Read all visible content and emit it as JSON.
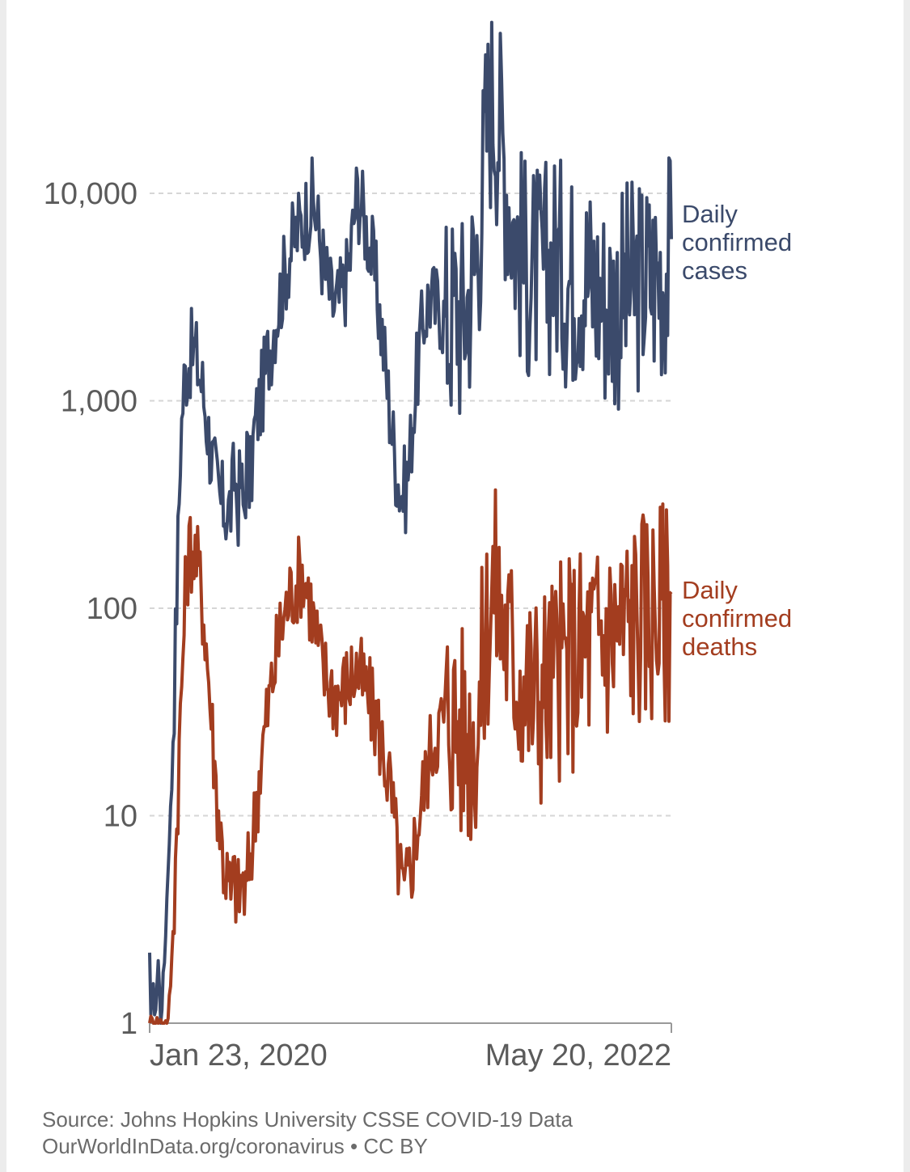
{
  "chart_data": {
    "type": "line",
    "title": "",
    "xlabel": "",
    "ylabel": "",
    "y_scale": "log",
    "ylim": [
      1,
      40000
    ],
    "y_ticks": [
      {
        "value": 1,
        "label": "1"
      },
      {
        "value": 10,
        "label": "10"
      },
      {
        "value": 100,
        "label": "100"
      },
      {
        "value": 1000,
        "label": "1,000"
      },
      {
        "value": 10000,
        "label": "10,000"
      }
    ],
    "x_range_days": [
      0,
      848
    ],
    "x_ticks": [
      {
        "day": 0,
        "label": "Jan 23, 2020"
      },
      {
        "day": 848,
        "label": "May 20, 2022"
      }
    ],
    "grid": true,
    "series": [
      {
        "name": "Daily confirmed cases",
        "label_lines": [
          "Daily",
          "confirmed",
          "cases"
        ],
        "color": "#3b4a6b",
        "points": [
          [
            0,
            2
          ],
          [
            2,
            1
          ],
          [
            5,
            2
          ],
          [
            8,
            1
          ],
          [
            14,
            2
          ],
          [
            18,
            1
          ],
          [
            24,
            2
          ],
          [
            28,
            4
          ],
          [
            32,
            8
          ],
          [
            36,
            14
          ],
          [
            40,
            40
          ],
          [
            45,
            150
          ],
          [
            50,
            600
          ],
          [
            55,
            1150
          ],
          [
            60,
            1450
          ],
          [
            66,
            1650
          ],
          [
            72,
            1750
          ],
          [
            78,
            1500
          ],
          [
            85,
            1200
          ],
          [
            92,
            850
          ],
          [
            100,
            550
          ],
          [
            108,
            400
          ],
          [
            115,
            320
          ],
          [
            122,
            310
          ],
          [
            128,
            290
          ],
          [
            133,
            320
          ],
          [
            138,
            450
          ],
          [
            143,
            300
          ],
          [
            148,
            420
          ],
          [
            153,
            280
          ],
          [
            158,
            550
          ],
          [
            163,
            380
          ],
          [
            170,
            700
          ],
          [
            176,
            900
          ],
          [
            183,
            1100
          ],
          [
            190,
            1500
          ],
          [
            197,
            1900
          ],
          [
            204,
            2500
          ],
          [
            212,
            3200
          ],
          [
            220,
            4200
          ],
          [
            228,
            5200
          ],
          [
            235,
            6000
          ],
          [
            242,
            6800
          ],
          [
            250,
            7500
          ],
          [
            258,
            8500
          ],
          [
            265,
            9200
          ],
          [
            272,
            7500
          ],
          [
            278,
            5500
          ],
          [
            284,
            4300
          ],
          [
            290,
            3600
          ],
          [
            296,
            3000
          ],
          [
            302,
            2800
          ],
          [
            308,
            3000
          ],
          [
            314,
            3400
          ],
          [
            320,
            3900
          ],
          [
            326,
            5000
          ],
          [
            332,
            7500
          ],
          [
            337,
            10000
          ],
          [
            343,
            9000
          ],
          [
            350,
            7200
          ],
          [
            356,
            6000
          ],
          [
            362,
            4800
          ],
          [
            368,
            3600
          ],
          [
            374,
            2600
          ],
          [
            380,
            1800
          ],
          [
            386,
            1200
          ],
          [
            392,
            800
          ],
          [
            398,
            550
          ],
          [
            404,
            420
          ],
          [
            410,
            360
          ],
          [
            416,
            380
          ],
          [
            422,
            500
          ],
          [
            428,
            850
          ],
          [
            434,
            1300
          ],
          [
            440,
            1900
          ],
          [
            446,
            2500
          ],
          [
            452,
            3000
          ],
          [
            458,
            3200
          ],
          [
            464,
            2800
          ],
          [
            470,
            3000
          ],
          [
            476,
            2600
          ],
          [
            482,
            2400
          ],
          [
            488,
            2500
          ],
          [
            494,
            2700
          ],
          [
            500,
            3000
          ],
          [
            505,
            2400
          ],
          [
            510,
            2600
          ],
          [
            516,
            3100
          ],
          [
            522,
            3600
          ],
          [
            528,
            4300
          ],
          [
            534,
            6000
          ],
          [
            540,
            10000
          ],
          [
            546,
            18000
          ],
          [
            552,
            27000
          ],
          [
            558,
            29000
          ],
          [
            564,
            25000
          ],
          [
            570,
            20000
          ],
          [
            576,
            15000
          ],
          [
            582,
            11000
          ],
          [
            588,
            8500
          ],
          [
            594,
            6500
          ],
          [
            600,
            5500
          ],
          [
            606,
            4800
          ],
          [
            612,
            4400
          ],
          [
            618,
            4200
          ],
          [
            624,
            4300
          ],
          [
            630,
            4100
          ],
          [
            636,
            3900
          ],
          [
            642,
            4200
          ],
          [
            648,
            4500
          ],
          [
            654,
            4800
          ],
          [
            660,
            5000
          ],
          [
            666,
            4600
          ],
          [
            672,
            4200
          ],
          [
            678,
            4000
          ],
          [
            684,
            3900
          ],
          [
            690,
            4100
          ],
          [
            696,
            4300
          ],
          [
            702,
            4500
          ],
          [
            708,
            4200
          ],
          [
            714,
            3900
          ],
          [
            720,
            3700
          ],
          [
            726,
            3500
          ],
          [
            732,
            3300
          ],
          [
            738,
            3200
          ],
          [
            744,
            3100
          ],
          [
            750,
            3000
          ],
          [
            756,
            3000
          ],
          [
            762,
            3100
          ],
          [
            768,
            3200
          ],
          [
            774,
            3300
          ],
          [
            780,
            3400
          ],
          [
            786,
            3500
          ],
          [
            792,
            3600
          ],
          [
            798,
            3700
          ],
          [
            804,
            3800
          ],
          [
            810,
            3900
          ],
          [
            816,
            4000
          ],
          [
            822,
            4100
          ],
          [
            828,
            4200
          ],
          [
            834,
            4300
          ],
          [
            840,
            4400
          ],
          [
            848,
            5000
          ]
        ]
      },
      {
        "name": "Daily confirmed deaths",
        "label_lines": [
          "Daily",
          "confirmed",
          "deaths"
        ],
        "color": "#a33d1f",
        "points": [
          [
            0,
            1
          ],
          [
            30,
            1
          ],
          [
            36,
            2
          ],
          [
            42,
            6
          ],
          [
            48,
            20
          ],
          [
            54,
            60
          ],
          [
            60,
            150
          ],
          [
            66,
            200
          ],
          [
            72,
            190
          ],
          [
            78,
            160
          ],
          [
            84,
            120
          ],
          [
            90,
            80
          ],
          [
            96,
            45
          ],
          [
            102,
            25
          ],
          [
            108,
            14
          ],
          [
            114,
            9
          ],
          [
            120,
            6
          ],
          [
            126,
            5
          ],
          [
            132,
            4
          ],
          [
            138,
            5
          ],
          [
            144,
            4
          ],
          [
            150,
            5
          ],
          [
            156,
            4
          ],
          [
            162,
            6
          ],
          [
            168,
            8
          ],
          [
            174,
            12
          ],
          [
            180,
            18
          ],
          [
            186,
            24
          ],
          [
            192,
            32
          ],
          [
            198,
            42
          ],
          [
            204,
            55
          ],
          [
            210,
            70
          ],
          [
            216,
            85
          ],
          [
            222,
            100
          ],
          [
            228,
            115
          ],
          [
            234,
            125
          ],
          [
            240,
            135
          ],
          [
            246,
            150
          ],
          [
            252,
            140
          ],
          [
            258,
            120
          ],
          [
            264,
            95
          ],
          [
            270,
            75
          ],
          [
            276,
            60
          ],
          [
            282,
            50
          ],
          [
            288,
            46
          ],
          [
            294,
            42
          ],
          [
            300,
            40
          ],
          [
            306,
            38
          ],
          [
            312,
            40
          ],
          [
            318,
            42
          ],
          [
            324,
            45
          ],
          [
            330,
            48
          ],
          [
            336,
            50
          ],
          [
            342,
            46
          ],
          [
            348,
            42
          ],
          [
            354,
            38
          ],
          [
            360,
            34
          ],
          [
            366,
            30
          ],
          [
            372,
            26
          ],
          [
            378,
            22
          ],
          [
            384,
            18
          ],
          [
            390,
            14
          ],
          [
            396,
            10
          ],
          [
            402,
            7
          ],
          [
            408,
            5
          ],
          [
            414,
            4
          ],
          [
            420,
            5
          ],
          [
            426,
            6
          ],
          [
            432,
            8
          ],
          [
            438,
            10
          ],
          [
            444,
            13
          ],
          [
            450,
            16
          ],
          [
            456,
            20
          ],
          [
            462,
            24
          ],
          [
            468,
            26
          ],
          [
            474,
            28
          ],
          [
            480,
            30
          ],
          [
            486,
            32
          ],
          [
            492,
            30
          ],
          [
            498,
            28
          ],
          [
            504,
            26
          ],
          [
            510,
            25
          ],
          [
            516,
            24
          ],
          [
            522,
            24
          ],
          [
            528,
            25
          ],
          [
            534,
            30
          ],
          [
            540,
            45
          ],
          [
            546,
            70
          ],
          [
            552,
            100
          ],
          [
            558,
            130
          ],
          [
            564,
            120
          ],
          [
            570,
            95
          ],
          [
            576,
            80
          ],
          [
            582,
            70
          ],
          [
            588,
            62
          ],
          [
            594,
            56
          ],
          [
            600,
            50
          ],
          [
            606,
            46
          ],
          [
            612,
            42
          ],
          [
            618,
            40
          ],
          [
            624,
            38
          ],
          [
            630,
            38
          ],
          [
            636,
            40
          ],
          [
            642,
            42
          ],
          [
            648,
            44
          ],
          [
            654,
            46
          ],
          [
            660,
            48
          ],
          [
            666,
            50
          ],
          [
            672,
            52
          ],
          [
            678,
            54
          ],
          [
            684,
            56
          ],
          [
            690,
            58
          ],
          [
            696,
            60
          ],
          [
            702,
            62
          ],
          [
            708,
            64
          ],
          [
            714,
            66
          ],
          [
            720,
            68
          ],
          [
            726,
            70
          ],
          [
            732,
            72
          ],
          [
            738,
            74
          ],
          [
            744,
            76
          ],
          [
            750,
            78
          ],
          [
            756,
            80
          ],
          [
            762,
            82
          ],
          [
            768,
            84
          ],
          [
            774,
            86
          ],
          [
            780,
            88
          ],
          [
            786,
            90
          ],
          [
            792,
            92
          ],
          [
            798,
            94
          ],
          [
            804,
            96
          ],
          [
            810,
            98
          ],
          [
            816,
            99
          ],
          [
            822,
            100
          ],
          [
            828,
            100
          ],
          [
            834,
            100
          ],
          [
            840,
            100
          ],
          [
            848,
            90
          ]
        ]
      }
    ]
  },
  "footer": {
    "source_line": "Source: Johns Hopkins University CSSE COVID-19 Data",
    "credit_line": "OurWorldInData.org/coronavirus • CC BY"
  }
}
